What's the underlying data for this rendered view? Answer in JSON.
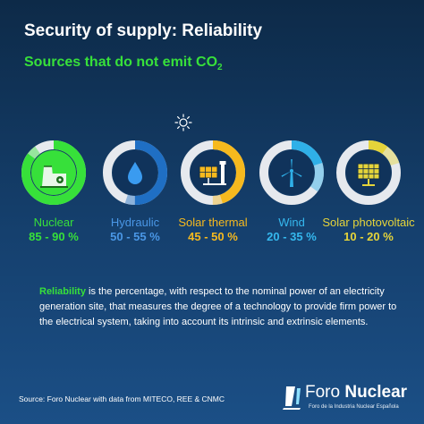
{
  "header": {
    "title": "Security of supply: Reliability",
    "subtitle_main": "Sources that do not emit CO",
    "subtitle_sub": "2"
  },
  "sources": [
    {
      "label": "Nuclear",
      "range": "85 - 90 %",
      "label_color": "#37e03a",
      "ring_color": "#37e03a",
      "value_min": 85,
      "value_max": 90,
      "icon": "nuclear-plant-icon"
    },
    {
      "label": "Hydraulic",
      "range": "50 - 55 %",
      "label_color": "#4a97e6",
      "ring_color": "#1f6fc4",
      "value_min": 50,
      "value_max": 55,
      "icon": "water-drop-icon"
    },
    {
      "label": "Solar thermal",
      "range": "45 - 50  %",
      "label_color": "#f6b91e",
      "ring_color": "#f6b91e",
      "value_min": 45,
      "value_max": 50,
      "icon": "solar-thermal-icon"
    },
    {
      "label": "Wind",
      "range": "20 - 35 %",
      "label_color": "#35b8ee",
      "ring_color": "#2fb0e8",
      "value_min": 20,
      "value_max": 35,
      "icon": "wind-turbine-icon"
    },
    {
      "label": "Solar photovoltaic",
      "range": "10 - 20 %",
      "label_color": "#e5d43a",
      "ring_color": "#e5d43a",
      "value_min": 10,
      "value_max": 20,
      "icon": "solar-panel-icon"
    }
  ],
  "note": {
    "term": "Reliability",
    "text": " is the percentage, with respect to the nominal power of an electricity generation site, that measures the degree of a technology to provide firm power to the electrical system, taking into account its intrinsic and extrinsic elements."
  },
  "footer": {
    "source": "Source: Foro Nuclear with data from MITECO, REE & CNMC",
    "logo_light": "Foro ",
    "logo_bold": "Nuclear",
    "logo_tagline": "Foro de la Industria Nuclear Española"
  },
  "colors": {
    "green": "#37e03a",
    "background": "#15406e",
    "ring_track": "#e6e9ee",
    "inner_disc": "#10335b"
  }
}
